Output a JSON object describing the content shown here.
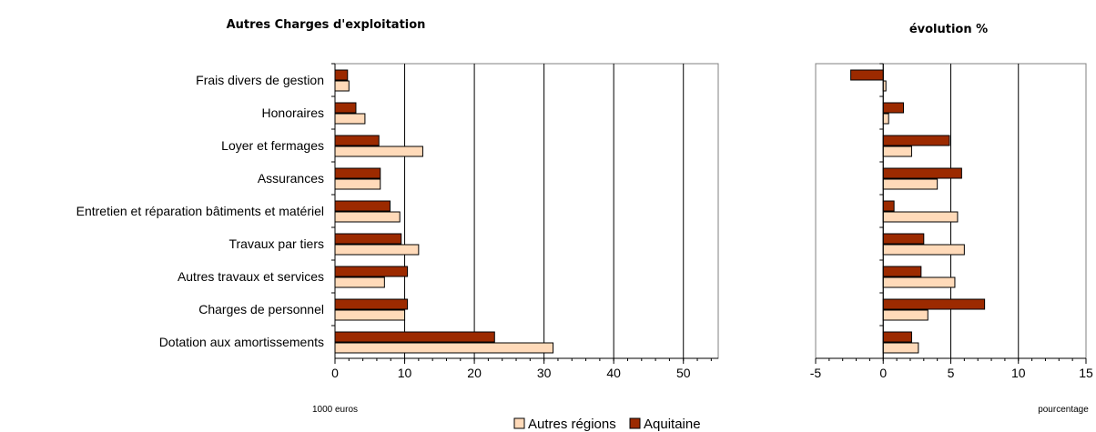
{
  "chart_data": [
    {
      "type": "bar",
      "orientation": "horizontal",
      "title": "Autres Charges d'exploitation",
      "xlabel": "1000 euros",
      "xlim": [
        0,
        55
      ],
      "xticks": [
        0,
        10,
        20,
        30,
        40,
        50
      ],
      "grid": true,
      "categories": [
        "Frais divers de gestion",
        "Honoraires",
        "Loyer et fermages",
        "Assurances",
        "Entretien et réparation bâtiments et matériel",
        "Travaux par tiers",
        "Autres travaux et services",
        "Charges de personnel",
        "Dotation aux amortissements"
      ],
      "series": [
        {
          "name": "Aquitaine",
          "color": "#9C2A00",
          "values": [
            1.8,
            3.0,
            6.3,
            6.5,
            7.9,
            9.5,
            10.4,
            10.4,
            22.9
          ]
        },
        {
          "name": "Autres régions",
          "color": "#FFDAB9",
          "values": [
            2.0,
            4.3,
            12.6,
            6.5,
            9.3,
            12.0,
            7.1,
            10.0,
            31.3
          ]
        }
      ]
    },
    {
      "type": "bar",
      "orientation": "horizontal",
      "title": "évolution %",
      "xlabel": "pourcentage",
      "xlim": [
        -5,
        15
      ],
      "xticks": [
        -5,
        0,
        5,
        10,
        15
      ],
      "grid": true,
      "categories": [
        "Frais divers de gestion",
        "Honoraires",
        "Loyer et fermages",
        "Assurances",
        "Entretien et réparation bâtiments et matériel",
        "Travaux par tiers",
        "Autres travaux et services",
        "Charges de personnel",
        "Dotation aux amortissements"
      ],
      "series": [
        {
          "name": "Aquitaine",
          "color": "#9C2A00",
          "values": [
            -2.4,
            1.5,
            4.9,
            5.8,
            0.8,
            3.0,
            2.8,
            7.5,
            2.1
          ]
        },
        {
          "name": "Autres régions",
          "color": "#FFDAB9",
          "values": [
            0.2,
            0.4,
            2.1,
            4.0,
            5.5,
            6.0,
            5.3,
            3.3,
            2.6
          ]
        }
      ]
    }
  ],
  "legend": {
    "placement": "bottom",
    "items": [
      {
        "label": "Autres régions",
        "color": "#FFDAB9"
      },
      {
        "label": "Aquitaine",
        "color": "#9C2A00"
      }
    ]
  }
}
